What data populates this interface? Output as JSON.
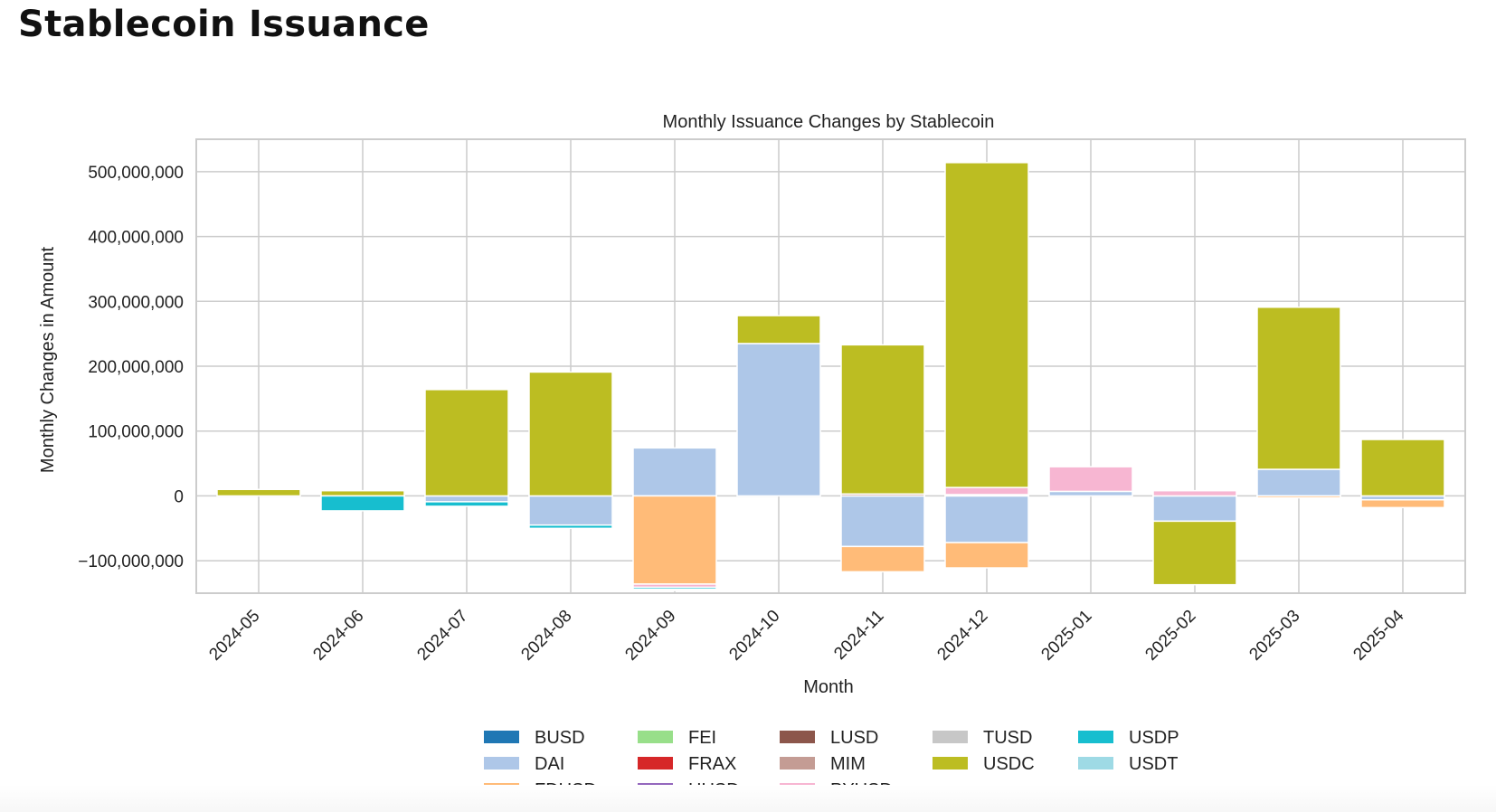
{
  "page": {
    "title": "Stablecoin Issuance"
  },
  "colors": {
    "BUSD": "#1f77b4",
    "DAI": "#aec7e8",
    "FDUSD": "#ffbb78",
    "FEI": "#98df8a",
    "FRAX": "#d62728",
    "HUSD": "#9467bd",
    "LUSD": "#8c564b",
    "MIM": "#c49c94",
    "PYUSD": "#f7b6d2",
    "TUSD": "#c7c7c7",
    "USDC": "#bcbd22",
    "USDP": "#17becf",
    "USDT": "#9edae5",
    "grid": "#cccccc",
    "frame": "#cccccc"
  },
  "chart_data": {
    "type": "bar",
    "stacked": true,
    "title": "Monthly Issuance Changes by Stablecoin",
    "xlabel": "Month",
    "ylabel": "Monthly Changes in Amount",
    "ylim": [
      -150000000,
      550000000
    ],
    "yticks": [
      -100000000,
      0,
      100000000,
      200000000,
      300000000,
      400000000,
      500000000
    ],
    "ytick_labels": [
      "−100,000,000",
      "0",
      "100,000,000",
      "200,000,000",
      "300,000,000",
      "400,000,000",
      "500,000,000"
    ],
    "grid": true,
    "legend_position": "bottom-center",
    "categories": [
      "2024-05",
      "2024-06",
      "2024-07",
      "2024-08",
      "2024-09",
      "2024-10",
      "2024-11",
      "2024-12",
      "2025-01",
      "2025-02",
      "2025-03",
      "2025-04"
    ],
    "series": [
      {
        "name": "BUSD",
        "values": [
          0,
          0,
          0,
          0,
          0,
          0,
          0,
          0,
          0,
          0,
          0,
          0
        ]
      },
      {
        "name": "DAI",
        "values": [
          0,
          0,
          -9000000,
          -45000000,
          74000000,
          235000000,
          -78000000,
          -72000000,
          7000000,
          -39000000,
          41000000,
          -6000000
        ]
      },
      {
        "name": "FDUSD",
        "values": [
          0,
          0,
          0,
          0,
          -136000000,
          0,
          -39000000,
          -39000000,
          0,
          0,
          -3000000,
          -12000000
        ]
      },
      {
        "name": "FEI",
        "values": [
          0,
          0,
          0,
          0,
          0,
          0,
          0,
          0,
          0,
          0,
          0,
          0
        ]
      },
      {
        "name": "FRAX",
        "values": [
          0,
          0,
          0,
          0,
          0,
          0,
          0,
          0,
          0,
          0,
          0,
          0
        ]
      },
      {
        "name": "HUSD",
        "values": [
          0,
          0,
          0,
          0,
          0,
          0,
          0,
          0,
          0,
          0,
          0,
          0
        ]
      },
      {
        "name": "LUSD",
        "values": [
          0,
          0,
          0,
          0,
          0,
          0,
          0,
          0,
          0,
          0,
          0,
          0
        ]
      },
      {
        "name": "MIM",
        "values": [
          0,
          0,
          0,
          0,
          0,
          0,
          3000000,
          2000000,
          0,
          0,
          0,
          0
        ]
      },
      {
        "name": "PYUSD",
        "values": [
          0,
          0,
          0,
          0,
          -5000000,
          0,
          0,
          11000000,
          38000000,
          8000000,
          0,
          0
        ]
      },
      {
        "name": "TUSD",
        "values": [
          0,
          0,
          0,
          0,
          0,
          0,
          0,
          0,
          0,
          0,
          0,
          0
        ]
      },
      {
        "name": "USDC",
        "values": [
          10000000,
          8000000,
          164000000,
          191000000,
          0,
          43000000,
          230000000,
          501000000,
          0,
          -98000000,
          250000000,
          87000000
        ]
      },
      {
        "name": "USDP",
        "values": [
          0,
          -23000000,
          -7000000,
          -5000000,
          -3000000,
          0,
          0,
          0,
          0,
          0,
          0,
          0
        ]
      },
      {
        "name": "USDT",
        "values": [
          0,
          0,
          0,
          0,
          -2000000,
          0,
          0,
          0,
          0,
          0,
          0,
          0
        ]
      }
    ]
  },
  "legend": {
    "columns": [
      [
        "BUSD",
        "DAI",
        "FDUSD"
      ],
      [
        "FEI",
        "FRAX",
        "HUSD"
      ],
      [
        "LUSD",
        "MIM",
        "PYUSD"
      ],
      [
        "TUSD",
        "USDC"
      ],
      [
        "USDP",
        "USDT"
      ]
    ]
  }
}
